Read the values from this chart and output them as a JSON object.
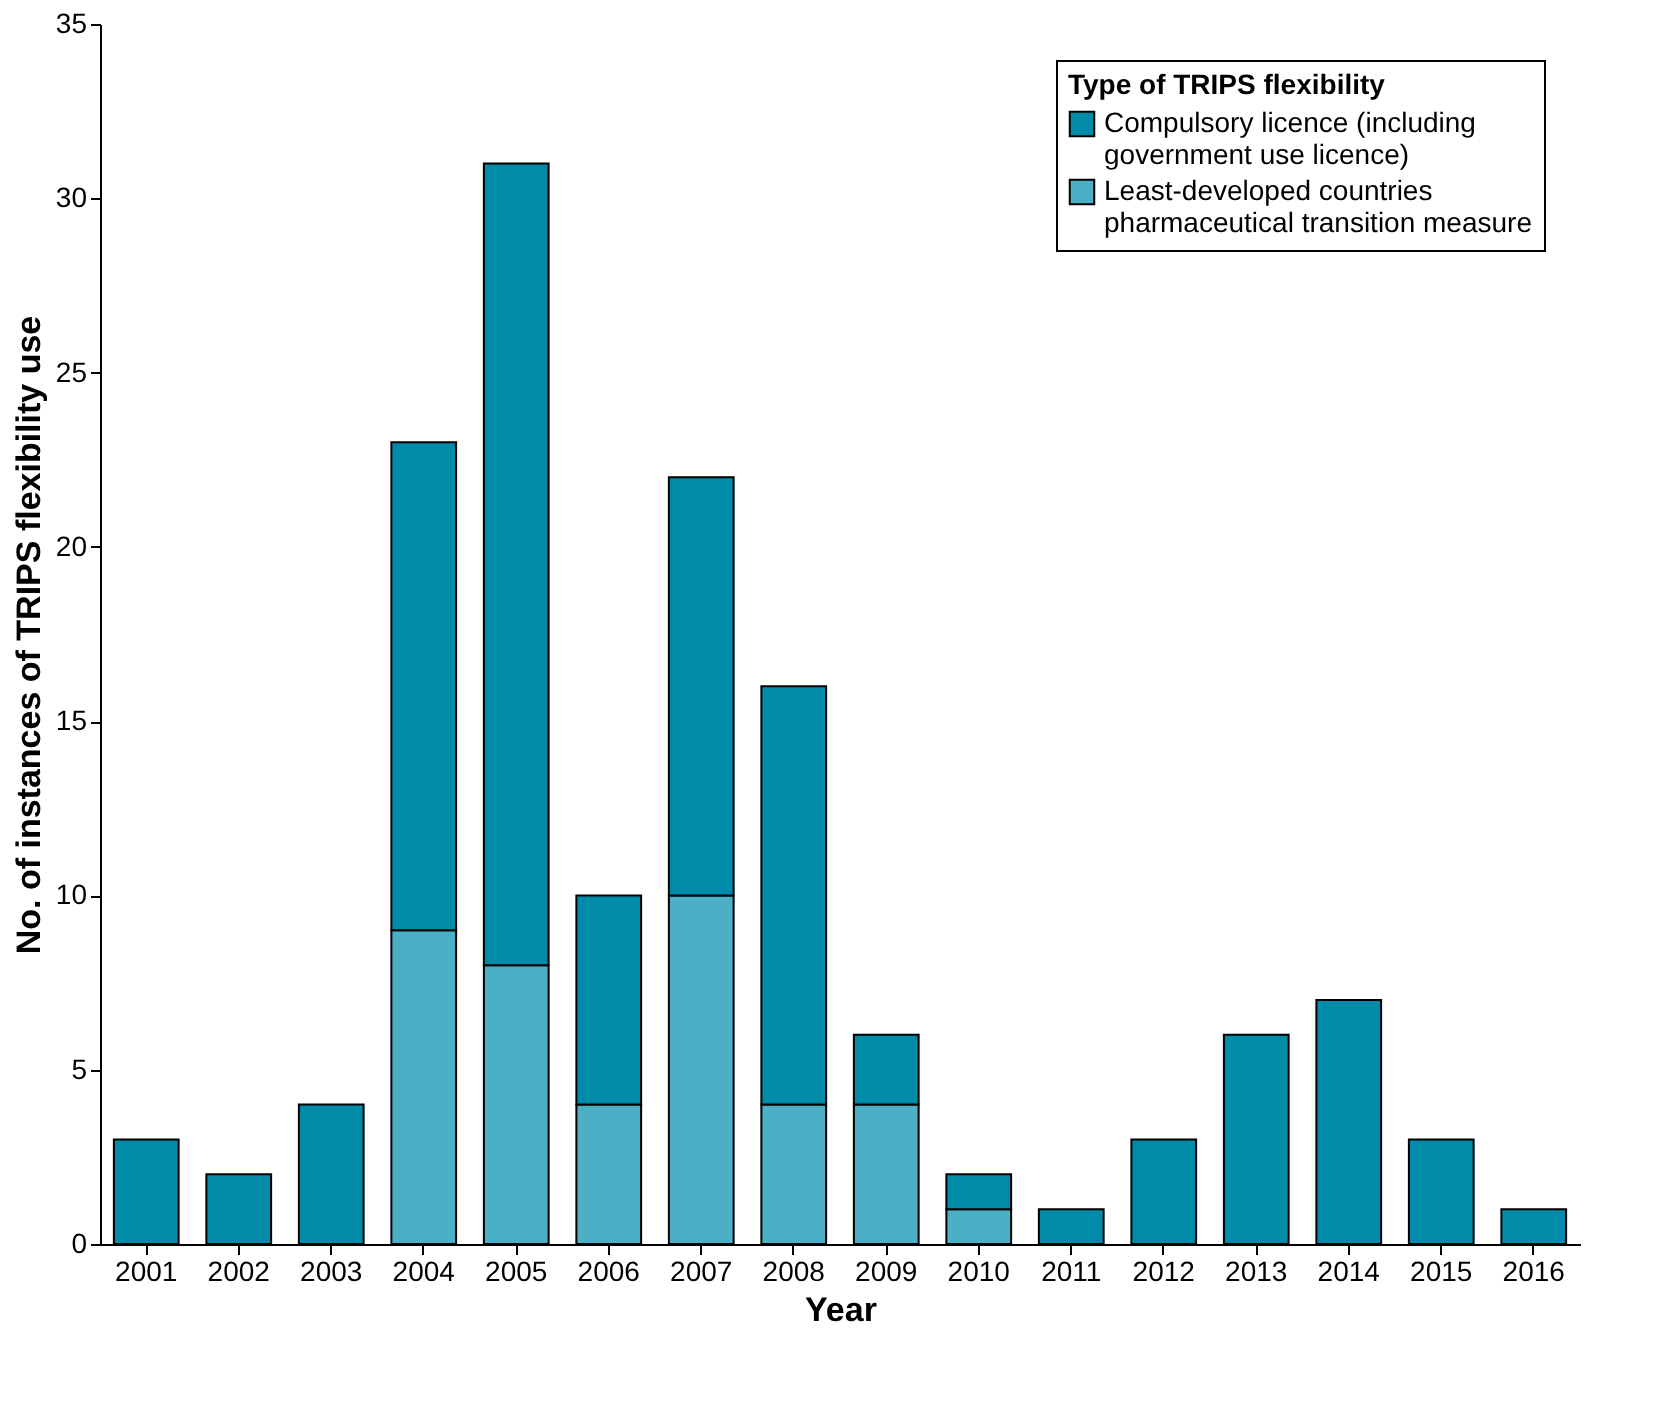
{
  "chart_data": {
    "type": "bar",
    "stacked": true,
    "xlabel": "Year",
    "ylabel": "No. of instances of TRIPS flexibility use",
    "legend_title": "Type of TRIPS flexibility",
    "legend": "top right",
    "grid": false,
    "categories": [
      "2001",
      "2002",
      "2003",
      "2004",
      "2005",
      "2006",
      "2007",
      "2008",
      "2009",
      "2010",
      "2011",
      "2012",
      "2013",
      "2014",
      "2015",
      "2016"
    ],
    "ylim": [
      0,
      35
    ],
    "yticks": [
      0,
      5,
      10,
      15,
      20,
      25,
      30,
      35
    ],
    "series": [
      {
        "name": "Least-developed countries pharmaceutical transition measure",
        "color": "#4bb0c6",
        "values": [
          null,
          null,
          null,
          9,
          8,
          4,
          10,
          4,
          4,
          1,
          null,
          null,
          null,
          null,
          null,
          null
        ]
      },
      {
        "name": "Compulsory licence (including government use licence)",
        "color": "#008ca8",
        "values": [
          3,
          2,
          4,
          14,
          23,
          6,
          12,
          12,
          2,
          1,
          1,
          3,
          6,
          7,
          3,
          1
        ]
      }
    ]
  }
}
